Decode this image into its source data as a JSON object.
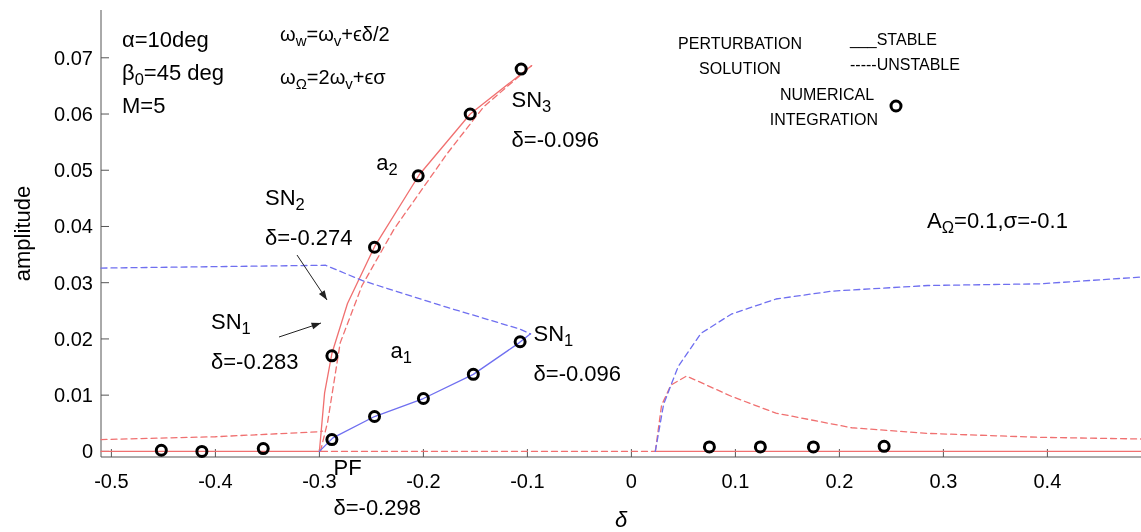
{
  "chart_data": {
    "type": "line",
    "xlabel": "δ",
    "ylabel": "amplitude",
    "xlim": [
      -0.51,
      0.49
    ],
    "ylim": [
      -0.001,
      0.0785
    ],
    "xticks": [
      -0.5,
      -0.4,
      -0.3,
      -0.2,
      -0.1,
      0,
      0.1,
      0.2,
      0.3,
      0.4
    ],
    "yticks": [
      0,
      0.01,
      0.02,
      0.03,
      0.04,
      0.05,
      0.06,
      0.07
    ],
    "grid": false,
    "legend": "top right",
    "series": [
      {
        "color": "#f07070",
        "line_style": "solid",
        "x": [
          -0.3,
          -0.295,
          -0.288,
          -0.273,
          -0.247,
          -0.204,
          -0.155,
          -0.096
        ],
        "values": [
          0,
          0.0104,
          0.0174,
          0.0263,
          0.0364,
          0.0492,
          0.06,
          0.0686
        ]
      },
      {
        "color": "#f07070",
        "line_style": "dashed",
        "x": [
          -0.299,
          -0.292,
          -0.28,
          -0.259,
          -0.228,
          -0.177,
          -0.142,
          -0.096
        ],
        "values": [
          0,
          0.0053,
          0.0193,
          0.0295,
          0.0396,
          0.053,
          0.0613,
          0.0686
        ]
      },
      {
        "color": "#f07070",
        "line_style": "dashed",
        "x": [
          -0.51,
          -0.4,
          -0.3,
          -0.297
        ],
        "values": [
          0.0021,
          0.0026,
          0.0035,
          0.0036
        ]
      },
      {
        "color": "#f07070",
        "line_style": "solid",
        "x": [
          -0.51,
          -0.298
        ],
        "values": [
          0,
          0
        ]
      },
      {
        "color": "#f07070",
        "line_style": "dashed",
        "x": [
          -0.298,
          0.023
        ],
        "values": [
          0,
          0
        ]
      },
      {
        "color": "#f07070",
        "line_style": "solid",
        "x": [
          0.023,
          0.49
        ],
        "values": [
          0,
          0
        ]
      },
      {
        "color": "#f07070",
        "line_style": "dashed",
        "x": [
          0.023,
          0.029,
          0.038,
          0.053,
          0.096,
          0.139,
          0.212,
          0.285,
          0.393,
          0.49
        ],
        "values": [
          0,
          0.0082,
          0.0118,
          0.0134,
          0.0098,
          0.0068,
          0.0042,
          0.0032,
          0.0025,
          0.0022
        ]
      },
      {
        "color": "#6f6ff0",
        "line_style": "dashed",
        "x": [
          0.023,
          0.031,
          0.045,
          0.067,
          0.096,
          0.139,
          0.193,
          0.285,
          0.393,
          0.49
        ],
        "values": [
          0,
          0.0084,
          0.0151,
          0.021,
          0.0244,
          0.0271,
          0.0285,
          0.0295,
          0.0298,
          0.031
        ]
      },
      {
        "color": "#6f6ff0",
        "line_style": "dashed",
        "x": [
          -0.51,
          -0.294,
          -0.259,
          -0.177,
          -0.108,
          -0.097
        ],
        "values": [
          0.0326,
          0.0331,
          0.0304,
          0.0256,
          0.0218,
          0.0209
        ]
      },
      {
        "color": "#6f6ff0",
        "line_style": "solid",
        "x": [
          -0.3,
          -0.287,
          -0.247,
          -0.2,
          -0.152,
          -0.108,
          -0.097
        ],
        "values": [
          0,
          0.0024,
          0.0062,
          0.0094,
          0.0137,
          0.0193,
          0.0209
        ]
      },
      {
        "type": "scatter",
        "name": "NUMERICAL INTEGRATION",
        "color": "#000000",
        "marker": "circle",
        "x": [
          -0.452,
          -0.413,
          -0.354,
          -0.288,
          -0.288,
          -0.247,
          -0.247,
          -0.2,
          -0.205,
          -0.152,
          -0.155,
          -0.107,
          -0.106,
          0.075,
          0.124,
          0.175,
          0.243
        ],
        "values": [
          0.0002,
          0,
          0.0005,
          0.0021,
          0.017,
          0.0062,
          0.0363,
          0.0094,
          0.049,
          0.0137,
          0.06,
          0.0195,
          0.068,
          0.0008,
          0.0008,
          0.0008,
          0.0009
        ]
      }
    ],
    "annotations": [
      "α=10deg",
      "β$_{0}$=45 deg",
      "M=5",
      "ω$_{w}$=ω$_{v}$+ϵδ/2",
      "ω$_{Ω}$=2ω$_{v}$+ϵσ",
      "PERTURBATION\nSOLUTION",
      "___STABLE",
      "-----UNSTABLE",
      "A$_{Ω}$=0.1,σ=-0.1",
      "SN$_{2}$\nδ=-0.274",
      "SN$_{1}$\nδ=-0.283",
      {
        "text": "SN$_{3}$\nδ=-0.096",
        "x": -0.096,
        "y": 0.0686
      },
      {
        "text": "a$_{2}$",
        "x": -0.205,
        "y": 0.049
      },
      {
        "text": "a$_{1}$",
        "x": -0.2,
        "y": 0.0094
      },
      {
        "text": "SN$_{1}$\nδ=-0.096",
        "x": -0.096,
        "y": 0.0209
      },
      {
        "text": "PF\nδ=-0.298",
        "x": -0.298,
        "y": 0
      }
    ]
  }
}
